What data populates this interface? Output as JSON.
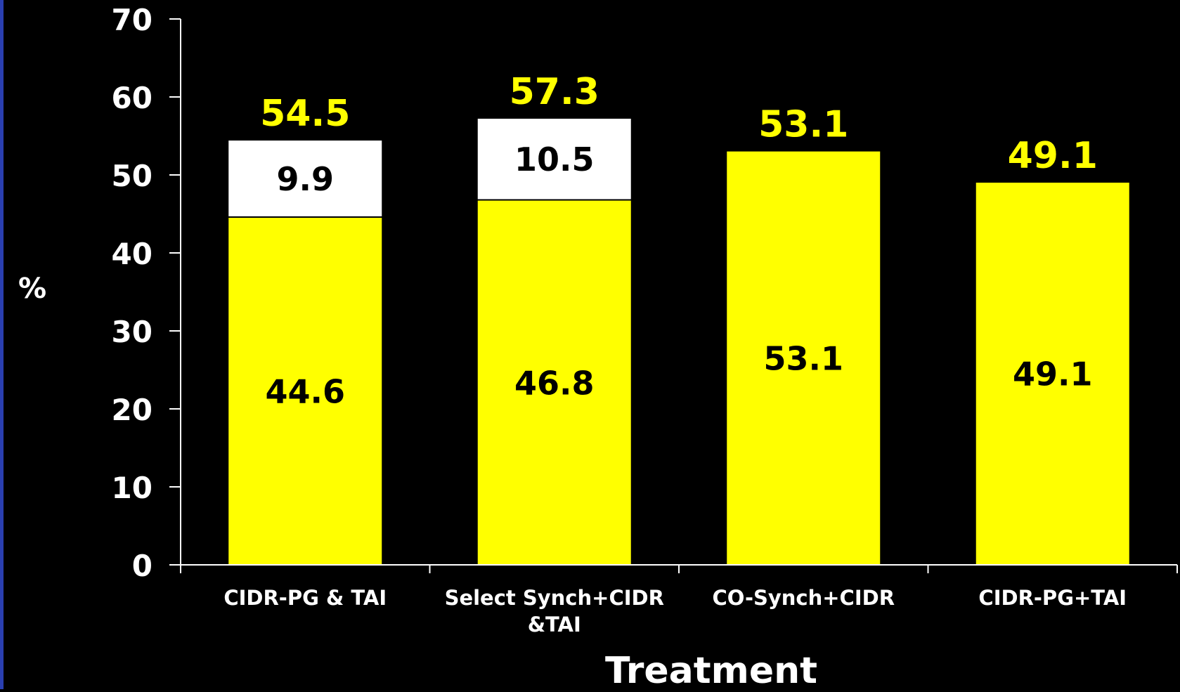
{
  "chart_data": {
    "type": "bar",
    "stacked": true,
    "categories": [
      [
        "CIDR-PG & TAI"
      ],
      [
        "Select Synch+CIDR",
        "&TAI"
      ],
      [
        "CO-Synch+CIDR"
      ],
      [
        "CIDR-PG+TAI"
      ]
    ],
    "series": [
      {
        "values": [
          44.6,
          46.8,
          53.1,
          49.1
        ],
        "labels": [
          "44.6",
          "46.8",
          "53.1",
          "49.1"
        ],
        "color": "#ffff00"
      },
      {
        "values": [
          9.9,
          10.5,
          null,
          null
        ],
        "labels": [
          "9.9",
          "10.5",
          "",
          ""
        ],
        "color": "#ffffff"
      }
    ],
    "totals": [
      "54.5",
      "57.3",
      "53.1",
      "49.1"
    ],
    "title": "",
    "xlabel": "Treatment",
    "ylabel": "%",
    "ylim": [
      0,
      70
    ],
    "yticks": [
      0,
      10,
      20,
      30,
      40,
      50,
      60,
      70
    ],
    "grid": false,
    "legend": "none",
    "colors": {
      "background": "#000000",
      "axis": "#ffffff",
      "tick_label": "#ffffff",
      "total_label": "#ffff00",
      "inner_label": "#000000",
      "left_edge": "#2a3fb0"
    }
  }
}
